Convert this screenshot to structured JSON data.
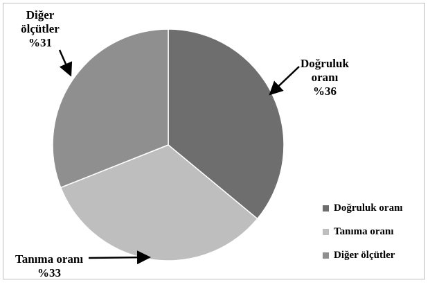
{
  "chart_data": {
    "type": "pie",
    "title": "",
    "slices": [
      {
        "label": "Doğruluk oranı",
        "value": 36,
        "value_label": "%36",
        "color": "#6e6e6e"
      },
      {
        "label": "Tanıma oranı",
        "value": 33,
        "value_label": "%33",
        "color": "#bebebe"
      },
      {
        "label": "Diğer ölçütler",
        "value": 31,
        "value_label": "%31",
        "color": "#8f8f8f"
      }
    ],
    "data_labels": [
      {
        "lines": [
          "Doğruluk",
          "oranı",
          "%36"
        ]
      },
      {
        "lines": [
          "Tanıma oranı",
          "%33"
        ]
      },
      {
        "lines": [
          "Diğer",
          "ölçütler",
          "%31"
        ]
      }
    ],
    "legend": {
      "position": "bottom-right",
      "entries": [
        "Doğruluk oranı",
        "Tanıma oranı",
        "Diğer ölçütler"
      ]
    }
  }
}
